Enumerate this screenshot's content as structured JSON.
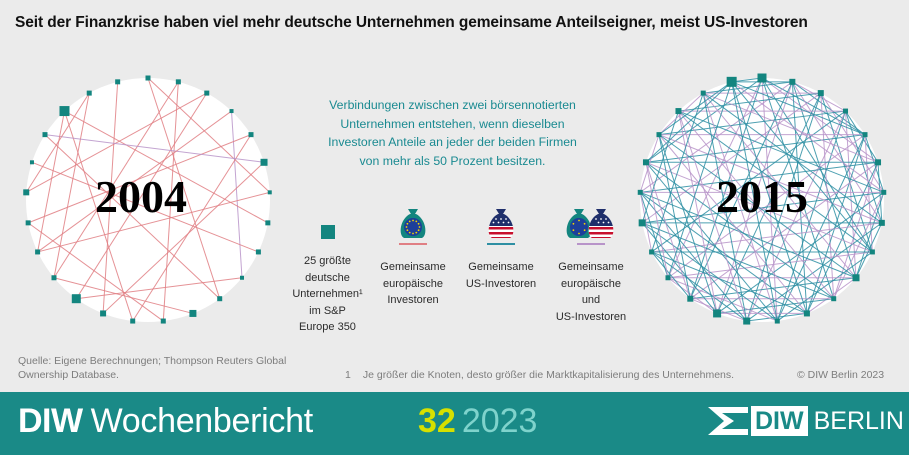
{
  "title": "Seit der Finanzkrise haben viel mehr deutsche Unternehmen gemeinsame Anteilseigner, meist US-Investoren",
  "networks": {
    "left_year": "2004",
    "right_year": "2015"
  },
  "explanation": [
    "Verbindungen zwischen zwei börsennotierten",
    "Unternehmen entstehen, wenn dieselben",
    "Investoren Anteile an jeder der beiden Firmen",
    "von mehr als 50 Prozent besitzen."
  ],
  "legend": {
    "nodes": [
      "25 größte",
      "deutsche",
      "Unternehmen¹",
      "im S&P",
      "Europe 350"
    ],
    "eu": [
      "Gemeinsame",
      "europäische",
      "Investoren"
    ],
    "us": [
      "Gemeinsame",
      "US-Investoren"
    ],
    "both": [
      "Gemeinsame",
      "europäische",
      "und",
      "US-Investoren"
    ]
  },
  "source": [
    "Quelle: Eigene Berechnungen; Thompson Reuters Global",
    "Ownership Database."
  ],
  "footnote": {
    "num": "1",
    "text": "Je größer die Knoten, desto größer die Marktkapitalisierung des Unternehmens."
  },
  "copyright": "© DIW Berlin 2023",
  "footer": {
    "brand_bold": "DIW",
    "brand_light": "Wochenbericht",
    "issue_number": "32",
    "issue_year": "2023",
    "logo_diw": "DIW",
    "logo_berlin": "BERLIN"
  },
  "colors": {
    "node": "#13857f",
    "eu_link": "#e07f84",
    "us_link": "#2e8fa3",
    "both_link": "#b894c9",
    "footer_bg": "#1a8a87",
    "explain_text": "#1a8a91"
  }
}
